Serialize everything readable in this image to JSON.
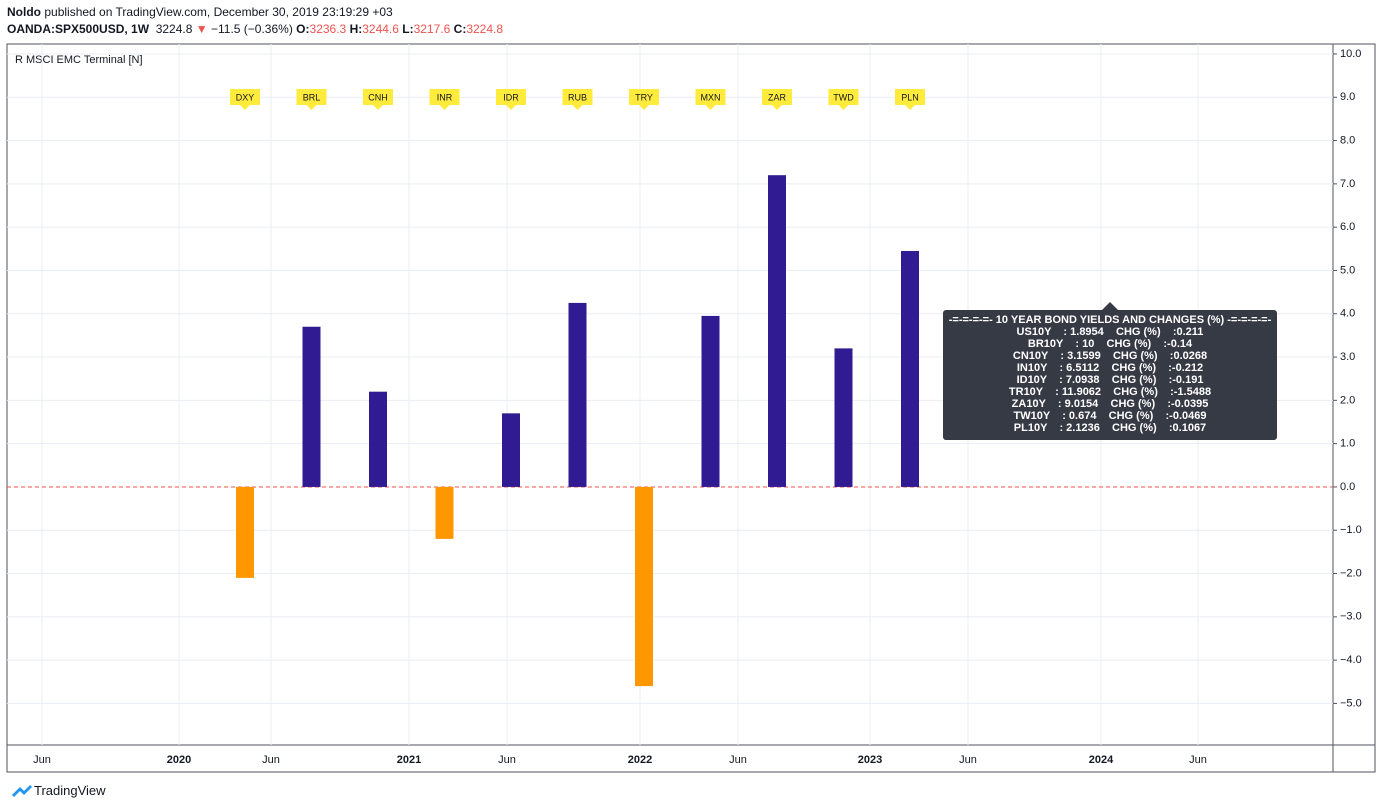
{
  "header": {
    "author": "Noldo",
    "published": "published on TradingView.com, December 30, 2019 23:19:29 +03",
    "symbol": "OANDA:SPX500USD, 1W",
    "last": "3224.8",
    "arrow": "▼",
    "change": "−11.5 (−0.36%)",
    "ohlc": [
      {
        "label": "O:",
        "value": "3236.3"
      },
      {
        "label": "H:",
        "value": "3244.6"
      },
      {
        "label": "L:",
        "value": "3217.6"
      },
      {
        "label": "C:",
        "value": "3224.8"
      }
    ]
  },
  "chart_data": {
    "type": "bar",
    "title": "R MSCI EMC Terminal [N]",
    "categories": [
      "DXY",
      "BRL",
      "CNH",
      "INR",
      "IDR",
      "RUB",
      "TRY",
      "MXN",
      "ZAR",
      "TWD",
      "PLN"
    ],
    "values": [
      -2.1,
      3.7,
      2.2,
      -1.2,
      1.7,
      4.25,
      -4.6,
      3.95,
      7.2,
      3.2,
      5.45
    ],
    "positive_color": "#311b92",
    "negative_color": "#ff9800",
    "ylim": [
      -5.96,
      10.23
    ],
    "yticks": [
      {
        "value": 10,
        "label": "10.0"
      },
      {
        "value": 9,
        "label": "9.0"
      },
      {
        "value": 8,
        "label": "8.0"
      },
      {
        "value": 7,
        "label": "7.0"
      },
      {
        "value": 6,
        "label": "6.0"
      },
      {
        "value": 5,
        "label": "5.0"
      },
      {
        "value": 4,
        "label": "4.0"
      },
      {
        "value": 3,
        "label": "3.0"
      },
      {
        "value": 2,
        "label": "2.0"
      },
      {
        "value": 1,
        "label": "1.0"
      },
      {
        "value": 0,
        "label": "0.0"
      },
      {
        "value": -1,
        "label": "−1.0"
      },
      {
        "value": -2,
        "label": "−2.0"
      },
      {
        "value": -3,
        "label": "−3.0"
      },
      {
        "value": -4,
        "label": "−4.0"
      },
      {
        "value": -5,
        "label": "−5.0"
      }
    ],
    "x_axis_labels": [
      "Jun",
      "2020",
      "Jun",
      "2021",
      "Jun",
      "2022",
      "Jun",
      "2023",
      "Jun",
      "2024",
      "Jun"
    ],
    "grid": true
  },
  "info_box": {
    "rows": [
      "-=-=-=-=- 10 YEAR BOND YIELDS AND CHANGES (%) -=-=-=-=-",
      "US10Y    : 1.8954    CHG (%)    :0.211",
      "BR10Y    : 10    CHG (%)    :-0.14",
      "CN10Y    : 3.1599    CHG (%)    :0.0268",
      "IN10Y    : 6.5112    CHG (%)    :-0.212",
      "ID10Y    : 7.0938    CHG (%)    :-0.191",
      "TR10Y    : 11.9062    CHG (%)    :-1.5488",
      "ZA10Y    : 9.0154    CHG (%)    :-0.0395",
      "TW10Y    : 0.674    CHG (%)    :-0.0469",
      "PL10Y    : 2.1236    CHG (%)    :0.1067"
    ]
  },
  "footer": {
    "brand": "TradingView"
  }
}
